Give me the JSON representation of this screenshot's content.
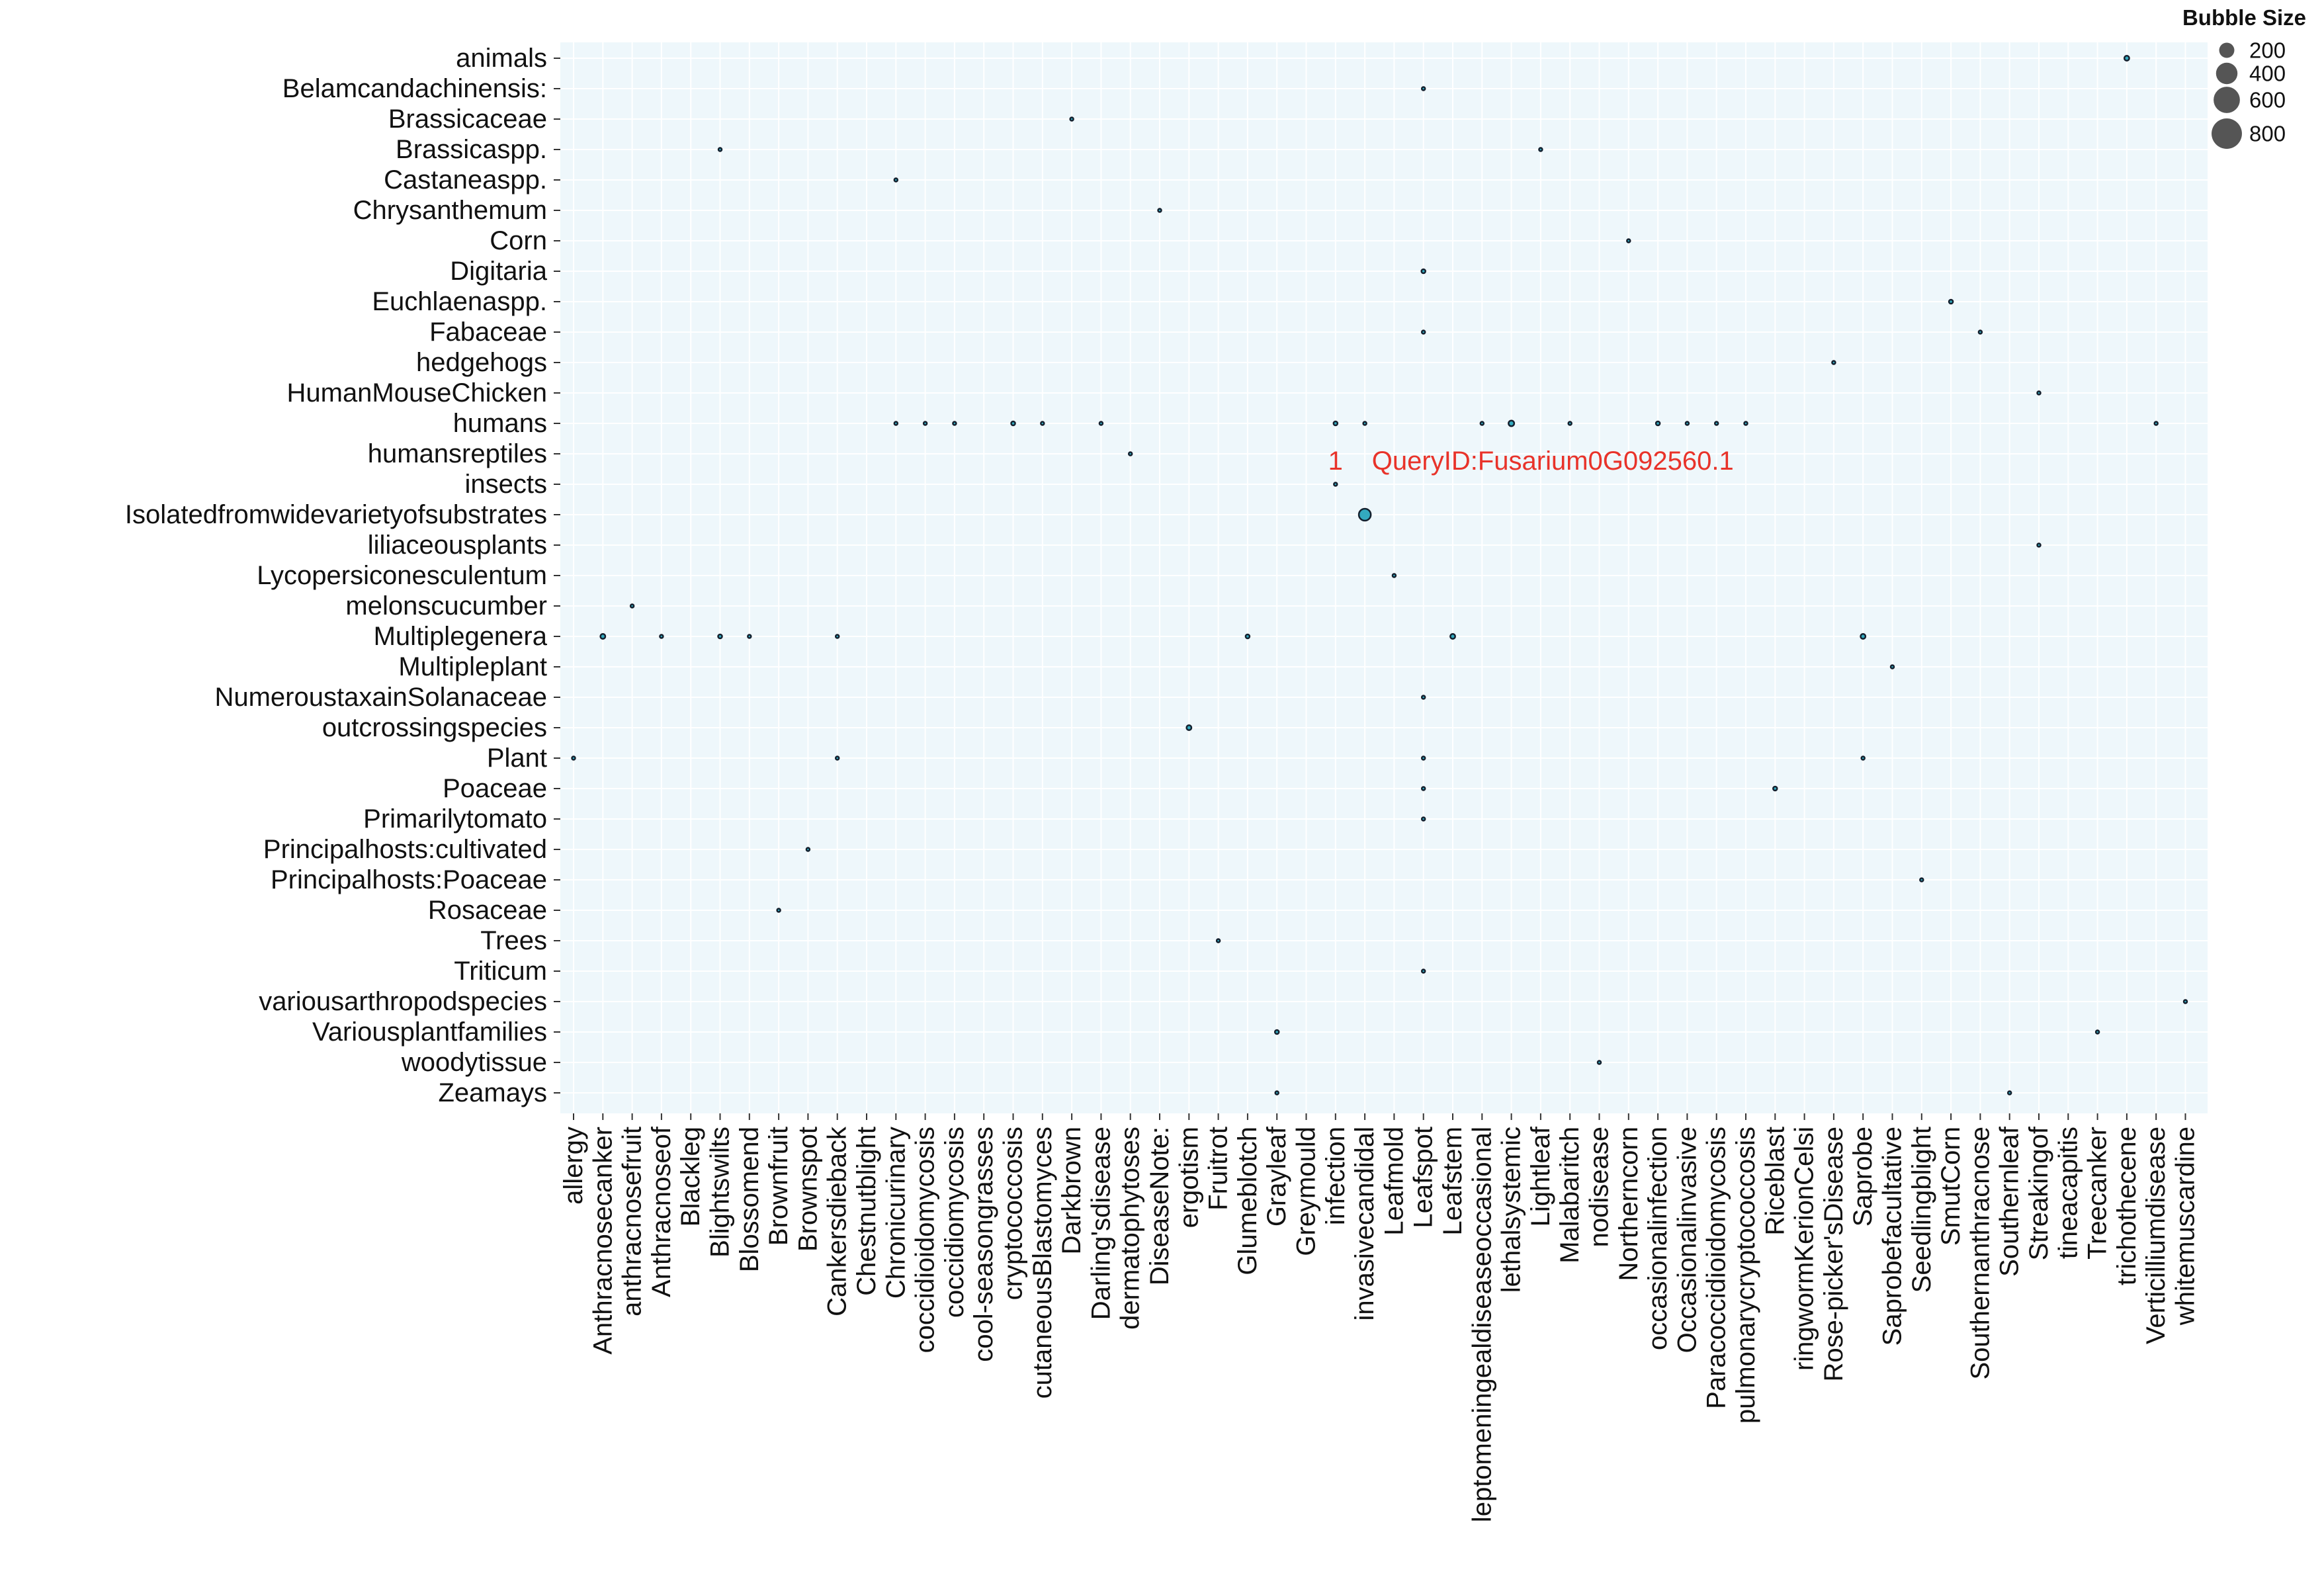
{
  "chart_data": {
    "type": "scatter",
    "title": "",
    "xlabel": "",
    "ylabel": "",
    "grid": true,
    "legend_position": "top-right",
    "highlight_color": "#e8332a",
    "panel_color": "#eef7fb",
    "grid_color": "#ffffff",
    "bubble_fill": "#33aabf",
    "bubble_stroke": "#14202e",
    "x_categories": [
      "allergy",
      "Anthracnosecanker",
      "anthracnosefruit",
      "Anthracnoseof",
      "Blackleg",
      "Blightswilts",
      "Blossomend",
      "Brownfruit",
      "Brownspot",
      "Cankersdieback",
      "Chestnutblight",
      "Chronicurinary",
      "coccidioidomycosis",
      "coccidiomycosis",
      "cool-seasongrasses",
      "cryptococcosis",
      "cutaneousBlastomyces",
      "Darkbrown",
      "Darling'sdisease",
      "dermatophytoses",
      "DiseaseNote:",
      "ergotism",
      "Fruitrot",
      "Glumeblotch",
      "Grayleaf",
      "Greymould",
      "infection",
      "invasivecandidal",
      "Leafmold",
      "Leafspot",
      "Leafstem",
      "leptomeningealdiseaseoccasional",
      "lethalsystemic",
      "Lightleaf",
      "Malabaritch",
      "nodisease",
      "Northerncorn",
      "occasionalinfection",
      "Occasionalinvasive",
      "Paracoccidioidomycosis",
      "pulmonarycryptococcosis",
      "Riceblast",
      "ringwormKerionCelsi",
      "Rose-picker'sDisease",
      "Saprobe",
      "Saprobefacultative",
      "Seedlingblight",
      "SmutCorn",
      "Southernanthracnose",
      "Southernleaf",
      "Streakingof",
      "tineacapitis",
      "Treecanker",
      "trichothecene",
      "Verticilliumdisease",
      "whitemuscardine"
    ],
    "y_categories": [
      "animals",
      "Belamcandachinensis:",
      "Brassicaceae",
      "Brassicaspp.",
      "Castaneaspp.",
      "Chrysanthemum",
      "Corn",
      "Digitaria",
      "Euchlaenaspp.",
      "Fabaceae",
      "hedgehogs",
      "HumanMouseChicken",
      "humans",
      "humansreptiles",
      "insects",
      "Isolatedfromwidevarietyofsubstrates",
      "liliaceousplants",
      "Lycopersiconesculentum",
      "melonscucumber",
      "Multiplegenera",
      "Multipleplant",
      "NumeroustaxainSolanaceae",
      "outcrossingspecies",
      "Plant",
      "Poaceae",
      "Primarilytomato",
      "Principalhosts:cultivated",
      "Principalhosts:Poaceae",
      "Rosaceae",
      "Trees",
      "Triticum",
      "variousarthropodspecies",
      "Variousplantfamilies",
      "woodytissue",
      "Zeamays"
    ],
    "highlight": {
      "x": "infection",
      "y": "insects"
    },
    "annotation": {
      "count": "1",
      "label": "QueryID:Fusarium0G092560.1",
      "x": "infection",
      "y": "insects"
    },
    "size_legend": {
      "title": "Bubble Size",
      "values": [
        200,
        400,
        600,
        800
      ]
    },
    "points": [
      {
        "x": "trichothecene",
        "y": "animals",
        "size": 15
      },
      {
        "x": "Leafspot",
        "y": "Belamcandachinensis:",
        "size": 5
      },
      {
        "x": "Darkbrown",
        "y": "Brassicaceae",
        "size": 5
      },
      {
        "x": "Blightswilts",
        "y": "Brassicaspp.",
        "size": 5
      },
      {
        "x": "Lightleaf",
        "y": "Brassicaspp.",
        "size": 5
      },
      {
        "x": "Chronicurinary",
        "y": "Castaneaspp.",
        "size": 5
      },
      {
        "x": "DiseaseNote:",
        "y": "Chrysanthemum",
        "size": 5
      },
      {
        "x": "Northerncorn",
        "y": "Corn",
        "size": 5
      },
      {
        "x": "Leafspot",
        "y": "Digitaria",
        "size": 10
      },
      {
        "x": "SmutCorn",
        "y": "Euchlaenaspp.",
        "size": 10
      },
      {
        "x": "Leafspot",
        "y": "Fabaceae",
        "size": 3
      },
      {
        "x": "Southernanthracnose",
        "y": "Fabaceae",
        "size": 3
      },
      {
        "x": "Rose-picker'sDisease",
        "y": "hedgehogs",
        "size": 3
      },
      {
        "x": "Streakingof",
        "y": "HumanMouseChicken",
        "size": 3
      },
      {
        "x": "Chronicurinary",
        "y": "humans",
        "size": 3
      },
      {
        "x": "coccidioidomycosis",
        "y": "humans",
        "size": 3
      },
      {
        "x": "coccidiomycosis",
        "y": "humans",
        "size": 5
      },
      {
        "x": "cryptococcosis",
        "y": "humans",
        "size": 10
      },
      {
        "x": "cutaneousBlastomyces",
        "y": "humans",
        "size": 5
      },
      {
        "x": "Darling'sdisease",
        "y": "humans",
        "size": 5
      },
      {
        "x": "infection",
        "y": "humans",
        "size": 10
      },
      {
        "x": "invasivecandidal",
        "y": "humans",
        "size": 5
      },
      {
        "x": "leptomeningealdiseaseoccasional",
        "y": "humans",
        "size": 5
      },
      {
        "x": "lethalsystemic",
        "y": "humans",
        "size": 20
      },
      {
        "x": "Malabaritch",
        "y": "humans",
        "size": 5
      },
      {
        "x": "occasionalinfection",
        "y": "humans",
        "size": 10
      },
      {
        "x": "Occasionalinvasive",
        "y": "humans",
        "size": 5
      },
      {
        "x": "Paracoccidioidomycosis",
        "y": "humans",
        "size": 5
      },
      {
        "x": "pulmonarycryptococcosis",
        "y": "humans",
        "size": 5
      },
      {
        "x": "Verticilliumdisease",
        "y": "humans",
        "size": 5
      },
      {
        "x": "dermatophytoses",
        "y": "humansreptiles",
        "size": 5
      },
      {
        "x": "infection",
        "y": "insects",
        "size": 3
      },
      {
        "x": "invasivecandidal",
        "y": "Isolatedfromwidevarietyofsubstrates",
        "size": 90
      },
      {
        "x": "Streakingof",
        "y": "liliaceousplants",
        "size": 5
      },
      {
        "x": "Leafmold",
        "y": "Lycopersiconesculentum",
        "size": 5
      },
      {
        "x": "anthracnosefruit",
        "y": "melonscucumber",
        "size": 3
      },
      {
        "x": "Anthracnosecanker",
        "y": "Multiplegenera",
        "size": 15
      },
      {
        "x": "Anthracnoseof",
        "y": "Multiplegenera",
        "size": 3
      },
      {
        "x": "Blightswilts",
        "y": "Multiplegenera",
        "size": 10
      },
      {
        "x": "Blossomend",
        "y": "Multiplegenera",
        "size": 3
      },
      {
        "x": "Cankersdieback",
        "y": "Multiplegenera",
        "size": 3
      },
      {
        "x": "Glumeblotch",
        "y": "Multiplegenera",
        "size": 10
      },
      {
        "x": "Leafstem",
        "y": "Multiplegenera",
        "size": 15
      },
      {
        "x": "Saprobe",
        "y": "Multiplegenera",
        "size": 15
      },
      {
        "x": "Saprobefacultative",
        "y": "Multipleplant",
        "size": 3
      },
      {
        "x": "Leafspot",
        "y": "NumeroustaxainSolanaceae",
        "size": 5
      },
      {
        "x": "ergotism",
        "y": "outcrossingspecies",
        "size": 15
      },
      {
        "x": "allergy",
        "y": "Plant",
        "size": 5
      },
      {
        "x": "Cankersdieback",
        "y": "Plant",
        "size": 5
      },
      {
        "x": "Leafspot",
        "y": "Plant",
        "size": 5
      },
      {
        "x": "Saprobe",
        "y": "Plant",
        "size": 5
      },
      {
        "x": "Leafspot",
        "y": "Poaceae",
        "size": 5
      },
      {
        "x": "Riceblast",
        "y": "Poaceae",
        "size": 10
      },
      {
        "x": "Leafspot",
        "y": "Primarilytomato",
        "size": 3
      },
      {
        "x": "Brownspot",
        "y": "Principalhosts:cultivated",
        "size": 3
      },
      {
        "x": "Seedlingblight",
        "y": "Principalhosts:Poaceae",
        "size": 3
      },
      {
        "x": "Brownfruit",
        "y": "Rosaceae",
        "size": 3
      },
      {
        "x": "Fruitrot",
        "y": "Trees",
        "size": 3
      },
      {
        "x": "Leafspot",
        "y": "Triticum",
        "size": 3
      },
      {
        "x": "whitemuscardine",
        "y": "variousarthropodspecies",
        "size": 3
      },
      {
        "x": "Grayleaf",
        "y": "Variousplantfamilies",
        "size": 10
      },
      {
        "x": "Treecanker",
        "y": "Variousplantfamilies",
        "size": 3
      },
      {
        "x": "nodisease",
        "y": "woodytissue",
        "size": 5
      },
      {
        "x": "Grayleaf",
        "y": "Zeamays",
        "size": 5
      },
      {
        "x": "Southernleaf",
        "y": "Zeamays",
        "size": 3
      }
    ]
  }
}
